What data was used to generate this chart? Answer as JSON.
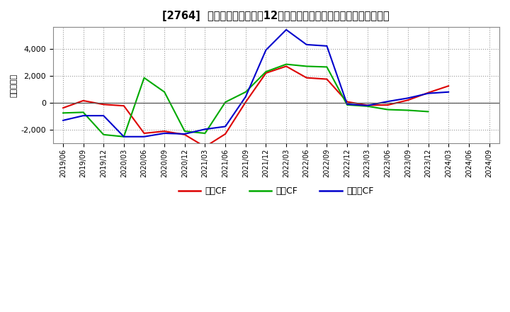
{
  "title": "[2764]  キャッシュフローの12か月移動合計の対前年同期増減額の推移",
  "ylabel": "（百万円）",
  "background_color": "#ffffff",
  "plot_bg_color": "#ffffff",
  "grid_color": "#999999",
  "ylim": [
    -3000,
    5600
  ],
  "yticks": [
    -2000,
    0,
    2000,
    4000
  ],
  "x_labels": [
    "2019/06",
    "2019/09",
    "2019/12",
    "2020/03",
    "2020/06",
    "2020/09",
    "2020/12",
    "2021/03",
    "2021/06",
    "2021/09",
    "2021/12",
    "2022/03",
    "2022/06",
    "2022/09",
    "2022/12",
    "2023/03",
    "2023/06",
    "2023/09",
    "2023/12",
    "2024/03",
    "2024/06",
    "2024/09"
  ],
  "series": {
    "営業CF": {
      "color": "#dd0000",
      "values": [
        -380,
        160,
        -120,
        -220,
        -2250,
        -2100,
        -2350,
        -3250,
        -2300,
        50,
        2200,
        2700,
        1850,
        1750,
        80,
        -180,
        -160,
        200,
        750,
        1250,
        null,
        null
      ]
    },
    "投賃CF": {
      "color": "#00aa00",
      "values": [
        -750,
        -700,
        -2350,
        -2500,
        1850,
        800,
        -2100,
        -2250,
        50,
        800,
        2300,
        2850,
        2700,
        2650,
        -150,
        -250,
        -500,
        -550,
        -650,
        null,
        null,
        null
      ]
    },
    "フリーCF": {
      "color": "#0000cc",
      "values": [
        -1300,
        -950,
        -950,
        -2500,
        -2500,
        -2250,
        -2300,
        -1950,
        -1750,
        450,
        3900,
        5400,
        4300,
        4200,
        -100,
        -200,
        100,
        350,
        700,
        800,
        null,
        null
      ]
    }
  },
  "legend_labels": [
    "営業CF",
    "投賃CF",
    "フリーCF"
  ],
  "legend_colors": [
    "#dd0000",
    "#00aa00",
    "#0000cc"
  ]
}
